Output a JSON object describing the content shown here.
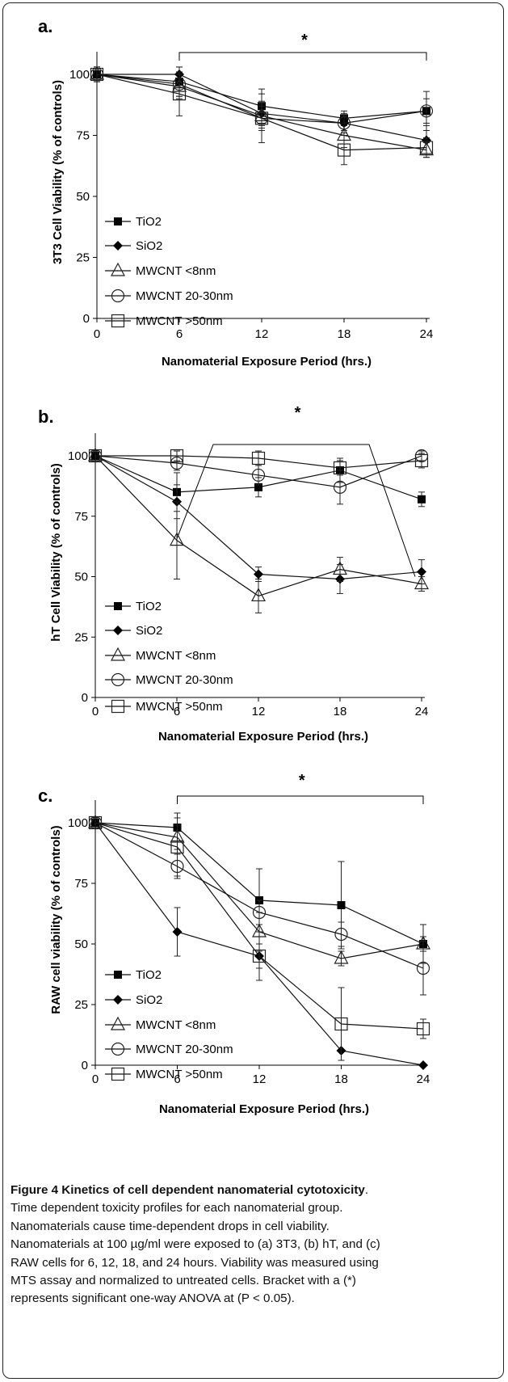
{
  "chart_data": [
    {
      "type": "line",
      "panel_label": "a.",
      "xlabel": "Nanomaterial Exposure Period (hrs.)",
      "ylabel": "3T3 Cell Viability (% of controls)",
      "xlim": [
        0,
        24
      ],
      "ylim": [
        0,
        100
      ],
      "xticks": [
        "0",
        "6",
        "12",
        "18",
        "24"
      ],
      "yticks": [
        "0",
        "25",
        "50",
        "75",
        "100"
      ],
      "significance_label": "*",
      "significance_range": [
        6,
        24
      ],
      "legend_position": "left",
      "series": [
        {
          "name": "TiO2",
          "marker": "filled-square",
          "x": [
            0,
            6,
            12,
            18,
            24
          ],
          "y": [
            100,
            97,
            87,
            82,
            85
          ],
          "err": [
            3,
            6,
            7,
            3,
            8
          ]
        },
        {
          "name": "SiO2",
          "marker": "filled-diamond",
          "x": [
            0,
            6,
            12,
            18,
            24
          ],
          "y": [
            100,
            100,
            84,
            80,
            73
          ],
          "err": [
            3,
            3,
            5,
            3,
            6
          ]
        },
        {
          "name": "MWCNT <8nm",
          "marker": "open-triangle",
          "x": [
            0,
            6,
            12,
            18,
            24
          ],
          "y": [
            100,
            95,
            83,
            75,
            69
          ],
          "err": [
            3,
            5,
            5,
            5,
            3
          ]
        },
        {
          "name": "MWCNT 20-30nm",
          "marker": "open-circle",
          "x": [
            0,
            6,
            12,
            18,
            24
          ],
          "y": [
            100,
            96,
            82,
            80,
            85
          ],
          "err": [
            3,
            5,
            5,
            4,
            5
          ]
        },
        {
          "name": "MWCNT >50nm",
          "marker": "open-square",
          "x": [
            0,
            6,
            12,
            18,
            24
          ],
          "y": [
            100,
            92,
            82,
            69,
            70
          ],
          "err": [
            3,
            9,
            10,
            6,
            4
          ]
        }
      ]
    },
    {
      "type": "line",
      "panel_label": "b.",
      "xlabel": "Nanomaterial Exposure Period (hrs.)",
      "ylabel": "hT Cell Viability (% of controls)",
      "xlim": [
        0,
        24
      ],
      "ylim": [
        0,
        100
      ],
      "xticks": [
        "0",
        "6",
        "12",
        "18",
        "24"
      ],
      "yticks": [
        "0",
        "25",
        "50",
        "75",
        "100"
      ],
      "significance_label": "*",
      "significance_range": [
        6,
        24
      ],
      "legend_position": "left",
      "series": [
        {
          "name": "TiO2",
          "marker": "filled-square",
          "x": [
            0,
            6,
            12,
            18,
            24
          ],
          "y": [
            100,
            85,
            87,
            94,
            82
          ],
          "err": [
            2,
            8,
            4,
            5,
            3
          ]
        },
        {
          "name": "SiO2",
          "marker": "filled-diamond",
          "x": [
            0,
            6,
            12,
            18,
            24
          ],
          "y": [
            100,
            81,
            51,
            49,
            52
          ],
          "err": [
            2,
            7,
            3,
            6,
            5
          ]
        },
        {
          "name": "MWCNT <8nm",
          "marker": "open-triangle",
          "x": [
            0,
            6,
            12,
            18,
            24
          ],
          "y": [
            100,
            65,
            42,
            53,
            47
          ],
          "err": [
            2,
            16,
            7,
            5,
            3
          ]
        },
        {
          "name": "MWCNT 20-30nm",
          "marker": "open-circle",
          "x": [
            0,
            6,
            12,
            18,
            24
          ],
          "y": [
            100,
            97,
            92,
            87,
            100
          ],
          "err": [
            2,
            3,
            4,
            7,
            2
          ]
        },
        {
          "name": "MWCNT >50nm",
          "marker": "open-square",
          "x": [
            0,
            6,
            12,
            18,
            24
          ],
          "y": [
            100,
            100,
            99,
            95,
            98
          ],
          "err": [
            2,
            2,
            3,
            3,
            3
          ]
        }
      ]
    },
    {
      "type": "line",
      "panel_label": "c.",
      "xlabel": "Nanomaterial Exposure Period (hrs.)",
      "ylabel": "RAW cell viability (% of controls)",
      "xlim": [
        0,
        24
      ],
      "ylim": [
        0,
        100
      ],
      "xticks": [
        "0",
        "6",
        "12",
        "18",
        "24"
      ],
      "yticks": [
        "0",
        "25",
        "50",
        "75",
        "100"
      ],
      "significance_label": "*",
      "significance_range": [
        6,
        24
      ],
      "legend_position": "left",
      "series": [
        {
          "name": "TiO2",
          "marker": "filled-square",
          "x": [
            0,
            6,
            12,
            18,
            24
          ],
          "y": [
            100,
            98,
            68,
            66,
            50
          ],
          "err": [
            2,
            6,
            13,
            18,
            8
          ]
        },
        {
          "name": "SiO2",
          "marker": "filled-diamond",
          "x": [
            0,
            6,
            12,
            18,
            24
          ],
          "y": [
            100,
            55,
            45,
            6,
            0
          ],
          "err": [
            2,
            10,
            10,
            0,
            0
          ]
        },
        {
          "name": "MWCNT <8nm",
          "marker": "open-triangle",
          "x": [
            0,
            6,
            12,
            18,
            24
          ],
          "y": [
            100,
            94,
            55,
            44,
            50
          ],
          "err": [
            2,
            5,
            8,
            3,
            3
          ]
        },
        {
          "name": "MWCNT 20-30nm",
          "marker": "open-circle",
          "x": [
            0,
            6,
            12,
            18,
            24
          ],
          "y": [
            100,
            82,
            63,
            54,
            40
          ],
          "err": [
            2,
            5,
            5,
            5,
            11
          ]
        },
        {
          "name": "MWCNT >50nm",
          "marker": "open-square",
          "x": [
            0,
            6,
            12,
            18,
            24
          ],
          "y": [
            100,
            90,
            45,
            17,
            15
          ],
          "err": [
            2,
            12,
            5,
            15,
            4
          ]
        }
      ]
    }
  ],
  "caption": {
    "title": "Figure 4 Kinetics of cell dependent nanomaterial cytotoxicity",
    "title_end": ".",
    "line1": "Time dependent toxicity profiles for each nanomaterial group.",
    "line2": "Nanomaterials cause time-dependent drops in cell viability.",
    "line3": "Nanomaterials at 100 µg/ml were exposed to (a) 3T3, (b) hT, and (c)",
    "line4": "RAW cells for 6, 12, 18, and 24 hours. Viability was measured using",
    "line5": "MTS assay and normalized to untreated cells. Bracket with a (*)",
    "line6": "represents significant one-way ANOVA at (P < 0.05)."
  }
}
